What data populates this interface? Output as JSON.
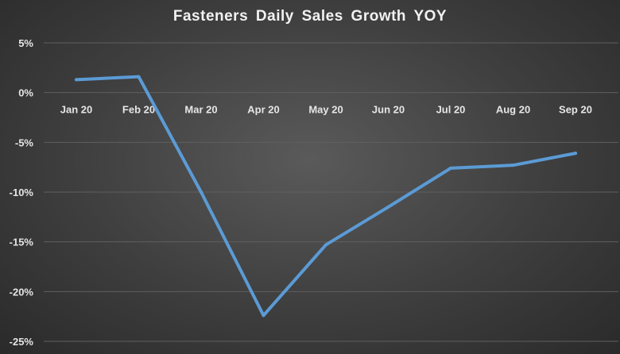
{
  "chart_data": {
    "type": "line",
    "title": "Fasteners Daily Sales Growth YOY",
    "xlabel": "",
    "ylabel": "",
    "categories": [
      "Jan 20",
      "Feb 20",
      "Mar 20",
      "Apr 20",
      "May 20",
      "Jun 20",
      "Jul 20",
      "Aug 20",
      "Sep 20"
    ],
    "series": [
      {
        "values": [
          1.3,
          1.6,
          -10.0,
          -22.4,
          -15.3,
          -11.5,
          -7.6,
          -7.3,
          -6.1
        ]
      }
    ],
    "ylim": [
      -25,
      5
    ],
    "yticks": [
      5,
      0,
      -5,
      -10,
      -15,
      -20,
      -25
    ],
    "ytick_labels": [
      "5%",
      "0%",
      "-5%",
      "-10%",
      "-15%",
      "-20%",
      "-25%"
    ],
    "grid": true,
    "legend": "none",
    "colors": {
      "line": "#5b9bd5",
      "grid": "#5f5f5f",
      "text": "#e6e6e6"
    }
  }
}
